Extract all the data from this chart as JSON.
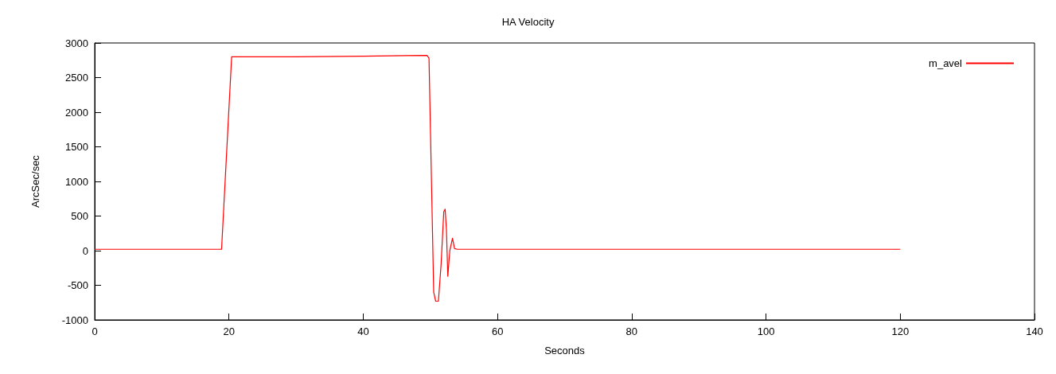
{
  "chart_data": {
    "type": "line",
    "title": "HA Velocity",
    "xlabel": "Seconds",
    "ylabel": "ArcSec/sec",
    "xlim": [
      0,
      140
    ],
    "xticks": [
      0,
      20,
      40,
      60,
      80,
      100,
      120,
      140
    ],
    "ylim": [
      -1000,
      3000
    ],
    "yticks": [
      -1000,
      -500,
      0,
      500,
      1000,
      1500,
      2000,
      2500,
      3000
    ],
    "grid": false,
    "legend": "top right",
    "marker": "none",
    "series": [
      {
        "name": "m_avel",
        "color": "#ff0000",
        "x": [
          0,
          10,
          18.9,
          20.4,
          30,
          40,
          49.5,
          49.8,
          50.5,
          50.8,
          51.2,
          51.6,
          52.0,
          52.2,
          52.4,
          52.6,
          52.9,
          53.3,
          53.6,
          54,
          80,
          120
        ],
        "values": [
          20,
          20,
          20,
          2800,
          2800,
          2810,
          2820,
          2780,
          -600,
          -730,
          -730,
          -200,
          560,
          600,
          300,
          -370,
          0,
          180,
          30,
          20,
          20,
          20
        ]
      }
    ]
  }
}
